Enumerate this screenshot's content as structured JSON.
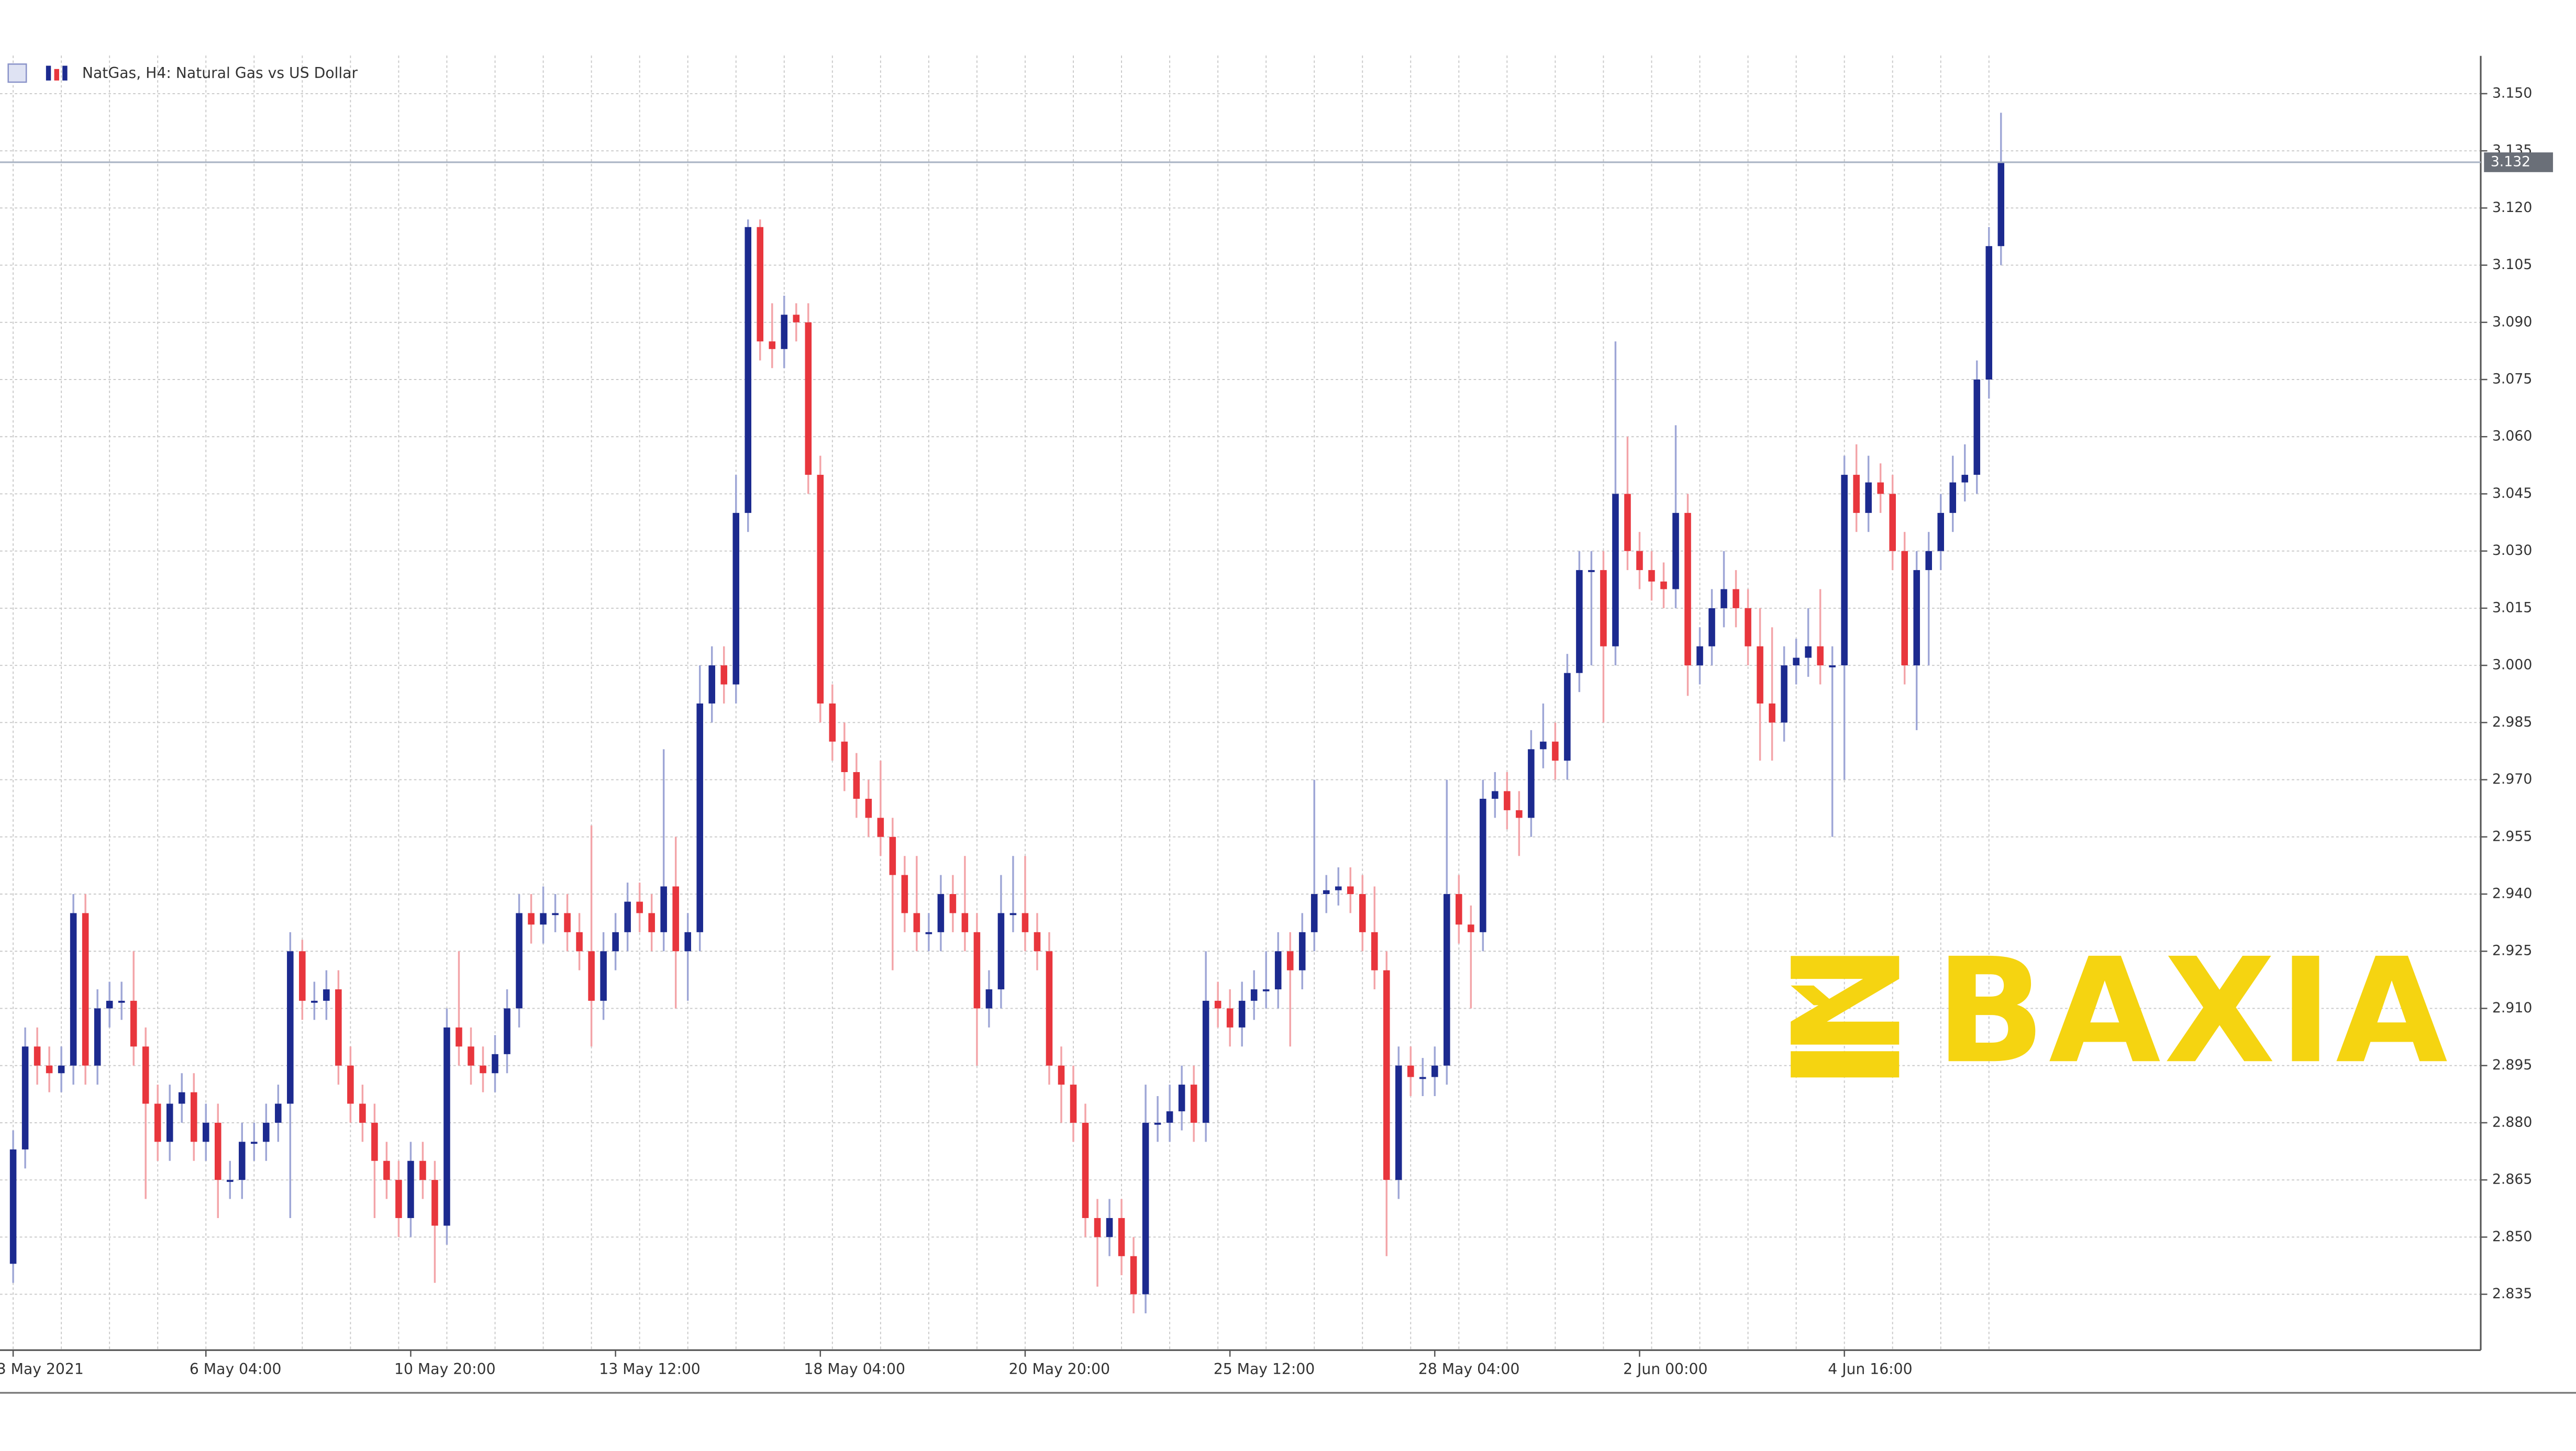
{
  "chart_data": {
    "type": "candlestick",
    "title": "NatGas, H4:  Natural Gas vs US Dollar",
    "watermark": "BAXIA",
    "up_color": "#1c2a8f",
    "down_color": "#e8363d",
    "up_wick_color": "#9ea6d6",
    "down_wick_color": "#f3a4a8",
    "grid": true,
    "categories": [
      "3 May 2021",
      null,
      null,
      null,
      null,
      null,
      null,
      null,
      null,
      null,
      null,
      null,
      null,
      null,
      null,
      null,
      "6 May 04:00",
      null,
      null,
      null,
      null,
      null,
      null,
      null,
      null,
      null,
      null,
      null,
      null,
      null,
      null,
      null,
      null,
      "10 May 20:00",
      null,
      null,
      null,
      null,
      null,
      null,
      null,
      null,
      null,
      null,
      null,
      null,
      null,
      null,
      null,
      null,
      "13 May 12:00",
      null,
      null,
      null,
      null,
      null,
      null,
      null,
      null,
      null,
      null,
      null,
      null,
      null,
      null,
      null,
      null,
      "18 May 04:00",
      null,
      null,
      null,
      null,
      null,
      null,
      null,
      null,
      null,
      null,
      null,
      null,
      null,
      null,
      null,
      null,
      "20 May 20:00",
      null,
      null,
      null,
      null,
      null,
      null,
      null,
      null,
      null,
      null,
      null,
      null,
      null,
      null,
      null,
      null,
      "25 May 12:00",
      null,
      null,
      null,
      null,
      null,
      null,
      null,
      null,
      null,
      null,
      null,
      null,
      null,
      null,
      null,
      null,
      "28 May 04:00",
      null,
      null,
      null,
      null,
      null,
      null,
      null,
      null,
      null,
      null,
      null,
      null,
      null,
      null,
      null,
      null,
      "2 Jun 00:00",
      null,
      null,
      null,
      null,
      null,
      null,
      null,
      null,
      null,
      null,
      null,
      null,
      null,
      null,
      null,
      null,
      "4 Jun 16:00",
      null,
      null,
      null,
      null,
      null,
      null,
      null,
      null,
      null,
      null,
      null,
      null,
      null
    ],
    "open": [
      2.843,
      2.873,
      2.9,
      2.895,
      2.893,
      2.895,
      2.935,
      2.895,
      2.91,
      2.912,
      2.912,
      2.9,
      2.885,
      2.875,
      2.885,
      2.888,
      2.875,
      2.88,
      2.865,
      2.865,
      2.875,
      2.875,
      2.88,
      2.885,
      2.925,
      2.912,
      2.912,
      2.915,
      2.895,
      2.885,
      2.88,
      2.87,
      2.865,
      2.855,
      2.87,
      2.865,
      2.853,
      2.905,
      2.9,
      2.895,
      2.893,
      2.898,
      2.91,
      2.935,
      2.932,
      2.935,
      2.935,
      2.93,
      2.925,
      2.912,
      2.925,
      2.93,
      2.938,
      2.935,
      2.93,
      2.942,
      2.925,
      2.93,
      2.99,
      3.0,
      2.995,
      3.04,
      3.115,
      3.085,
      3.083,
      3.092,
      3.09,
      3.05,
      2.99,
      2.98,
      2.972,
      2.965,
      2.96,
      2.955,
      2.945,
      2.935,
      2.93,
      2.93,
      2.94,
      2.935,
      2.93,
      2.91,
      2.915,
      2.935,
      2.935,
      2.93,
      2.925,
      2.895,
      2.89,
      2.88,
      2.855,
      2.85,
      2.855,
      2.845,
      2.835,
      2.88,
      2.88,
      2.883,
      2.89,
      2.88,
      2.912,
      2.91,
      2.905,
      2.912,
      2.915,
      2.915,
      2.925,
      2.92,
      2.93,
      2.94,
      2.941,
      2.942,
      2.94,
      2.93,
      2.92,
      2.865,
      2.895,
      2.892,
      2.892,
      2.895,
      2.94,
      2.932,
      2.93,
      2.965,
      2.967,
      2.962,
      2.96,
      2.978,
      2.98,
      2.975,
      2.998,
      3.025,
      3.025,
      3.005,
      3.045,
      3.03,
      3.025,
      3.022,
      3.02,
      3.04,
      3.0,
      3.005,
      3.015,
      3.02,
      3.015,
      3.005,
      2.99,
      2.985,
      3.0,
      3.002,
      3.005,
      3.0,
      3.0,
      3.05,
      3.04,
      3.048,
      3.045,
      3.03,
      3.0,
      3.025,
      3.03,
      3.04,
      3.048,
      3.05,
      3.075,
      3.11
    ],
    "high": [
      2.878,
      2.905,
      2.905,
      2.9,
      2.9,
      2.94,
      2.94,
      2.915,
      2.917,
      2.917,
      2.925,
      2.905,
      2.89,
      2.89,
      2.893,
      2.893,
      2.885,
      2.885,
      2.87,
      2.88,
      2.88,
      2.885,
      2.89,
      2.93,
      2.928,
      2.917,
      2.92,
      2.92,
      2.9,
      2.89,
      2.885,
      2.875,
      2.87,
      2.875,
      2.875,
      2.87,
      2.91,
      2.925,
      2.905,
      2.9,
      2.903,
      2.915,
      2.94,
      2.94,
      2.942,
      2.94,
      2.94,
      2.935,
      2.958,
      2.93,
      2.935,
      2.943,
      2.943,
      2.94,
      2.978,
      2.955,
      2.935,
      3.0,
      3.005,
      3.005,
      3.05,
      3.117,
      3.117,
      3.095,
      3.097,
      3.095,
      3.095,
      3.055,
      2.995,
      2.985,
      2.977,
      2.97,
      2.975,
      2.96,
      2.95,
      2.95,
      2.935,
      2.945,
      2.945,
      2.95,
      2.935,
      2.92,
      2.945,
      2.95,
      2.95,
      2.935,
      2.93,
      2.9,
      2.895,
      2.885,
      2.86,
      2.86,
      2.86,
      2.85,
      2.89,
      2.887,
      2.89,
      2.895,
      2.895,
      2.925,
      2.917,
      2.915,
      2.917,
      2.92,
      2.925,
      2.93,
      2.93,
      2.935,
      2.97,
      2.945,
      2.947,
      2.947,
      2.945,
      2.942,
      2.925,
      2.9,
      2.9,
      2.897,
      2.9,
      2.97,
      2.945,
      2.937,
      2.97,
      2.972,
      2.972,
      2.967,
      2.983,
      2.99,
      2.985,
      3.003,
      3.03,
      3.03,
      3.03,
      3.085,
      3.06,
      3.035,
      3.03,
      3.027,
      3.063,
      3.045,
      3.01,
      3.02,
      3.03,
      3.025,
      3.02,
      3.015,
      3.01,
      3.005,
      3.007,
      3.015,
      3.02,
      3.005,
      3.055,
      3.058,
      3.055,
      3.053,
      3.05,
      3.035,
      3.03,
      3.035,
      3.045,
      3.055,
      3.058,
      3.08,
      3.115,
      3.145
    ],
    "low": [
      2.838,
      2.868,
      2.89,
      2.888,
      2.888,
      2.89,
      2.89,
      2.89,
      2.905,
      2.907,
      2.895,
      2.86,
      2.87,
      2.87,
      2.88,
      2.87,
      2.87,
      2.855,
      2.86,
      2.86,
      2.87,
      2.87,
      2.875,
      2.855,
      2.907,
      2.907,
      2.907,
      2.89,
      2.88,
      2.875,
      2.855,
      2.86,
      2.85,
      2.85,
      2.86,
      2.838,
      2.848,
      2.895,
      2.89,
      2.888,
      2.888,
      2.893,
      2.905,
      2.927,
      2.927,
      2.93,
      2.925,
      2.92,
      2.9,
      2.907,
      2.92,
      2.925,
      2.93,
      2.925,
      2.925,
      2.91,
      2.912,
      2.925,
      2.985,
      2.99,
      2.99,
      3.035,
      3.08,
      3.078,
      3.078,
      3.085,
      3.045,
      2.985,
      2.975,
      2.967,
      2.96,
      2.955,
      2.95,
      2.92,
      2.93,
      2.925,
      2.925,
      2.925,
      2.93,
      2.925,
      2.895,
      2.905,
      2.91,
      2.93,
      2.925,
      2.92,
      2.89,
      2.88,
      2.875,
      2.85,
      2.837,
      2.845,
      2.84,
      2.83,
      2.83,
      2.875,
      2.875,
      2.878,
      2.875,
      2.875,
      2.905,
      2.9,
      2.9,
      2.907,
      2.91,
      2.91,
      2.9,
      2.915,
      2.925,
      2.935,
      2.937,
      2.935,
      2.925,
      2.915,
      2.845,
      2.86,
      2.887,
      2.887,
      2.887,
      2.89,
      2.927,
      2.91,
      2.925,
      2.96,
      2.957,
      2.95,
      2.955,
      2.973,
      2.97,
      2.97,
      2.993,
      3.0,
      2.985,
      3.0,
      3.025,
      3.02,
      3.017,
      3.015,
      3.015,
      2.992,
      2.995,
      3.0,
      3.01,
      3.01,
      3.0,
      2.975,
      2.975,
      2.98,
      2.995,
      2.997,
      2.995,
      2.955,
      2.97,
      3.035,
      3.035,
      3.04,
      3.025,
      2.995,
      2.983,
      3.0,
      3.025,
      3.035,
      3.043,
      3.045,
      3.07,
      3.105
    ],
    "close": [
      2.873,
      2.9,
      2.895,
      2.893,
      2.895,
      2.935,
      2.895,
      2.91,
      2.912,
      2.912,
      2.9,
      2.885,
      2.875,
      2.885,
      2.888,
      2.875,
      2.88,
      2.865,
      2.865,
      2.875,
      2.875,
      2.88,
      2.885,
      2.925,
      2.912,
      2.912,
      2.915,
      2.895,
      2.885,
      2.88,
      2.87,
      2.865,
      2.855,
      2.87,
      2.865,
      2.853,
      2.905,
      2.9,
      2.895,
      2.893,
      2.898,
      2.91,
      2.935,
      2.932,
      2.935,
      2.935,
      2.93,
      2.925,
      2.912,
      2.925,
      2.93,
      2.938,
      2.935,
      2.93,
      2.942,
      2.925,
      2.93,
      2.99,
      3.0,
      2.995,
      3.04,
      3.115,
      3.085,
      3.083,
      3.092,
      3.09,
      3.05,
      2.99,
      2.98,
      2.972,
      2.965,
      2.96,
      2.955,
      2.945,
      2.935,
      2.93,
      2.93,
      2.94,
      2.935,
      2.93,
      2.91,
      2.915,
      2.935,
      2.935,
      2.93,
      2.925,
      2.895,
      2.89,
      2.88,
      2.855,
      2.85,
      2.855,
      2.845,
      2.835,
      2.88,
      2.88,
      2.883,
      2.89,
      2.88,
      2.912,
      2.91,
      2.905,
      2.912,
      2.915,
      2.915,
      2.925,
      2.92,
      2.93,
      2.94,
      2.941,
      2.942,
      2.94,
      2.93,
      2.92,
      2.865,
      2.895,
      2.892,
      2.892,
      2.895,
      2.94,
      2.932,
      2.93,
      2.965,
      2.967,
      2.962,
      2.96,
      2.978,
      2.98,
      2.975,
      2.998,
      3.025,
      3.025,
      3.005,
      3.045,
      3.03,
      3.025,
      3.022,
      3.02,
      3.04,
      3.0,
      3.005,
      3.015,
      3.02,
      3.015,
      3.005,
      2.99,
      2.985,
      3.0,
      3.002,
      3.005,
      3.0,
      3.0,
      3.05,
      3.04,
      3.048,
      3.045,
      3.03,
      3.0,
      3.025,
      3.03,
      3.04,
      3.048,
      3.05,
      3.075,
      3.11,
      3.132
    ],
    "last_price": {
      "value": 3.132,
      "label": "3.132"
    },
    "ylim": [
      2.82,
      3.16
    ],
    "yticks": [
      {
        "value": 2.835,
        "label": "2.835"
      },
      {
        "value": 2.85,
        "label": "2.850"
      },
      {
        "value": 2.865,
        "label": "2.865"
      },
      {
        "value": 2.88,
        "label": "2.880"
      },
      {
        "value": 2.895,
        "label": "2.895"
      },
      {
        "value": 2.91,
        "label": "2.910"
      },
      {
        "value": 2.925,
        "label": "2.925"
      },
      {
        "value": 2.94,
        "label": "2.940"
      },
      {
        "value": 2.955,
        "label": "2.955"
      },
      {
        "value": 2.97,
        "label": "2.970"
      },
      {
        "value": 2.985,
        "label": "2.985"
      },
      {
        "value": 3.0,
        "label": "3.000"
      },
      {
        "value": 3.015,
        "label": "3.015"
      },
      {
        "value": 3.03,
        "label": "3.030"
      },
      {
        "value": 3.045,
        "label": "3.045"
      },
      {
        "value": 3.06,
        "label": "3.060"
      },
      {
        "value": 3.075,
        "label": "3.075"
      },
      {
        "value": 3.09,
        "label": "3.090"
      },
      {
        "value": 3.105,
        "label": "3.105"
      },
      {
        "value": 3.12,
        "label": "3.120"
      },
      {
        "value": 3.135,
        "label": "3.135"
      },
      {
        "value": 3.15,
        "label": "3.150"
      }
    ]
  }
}
